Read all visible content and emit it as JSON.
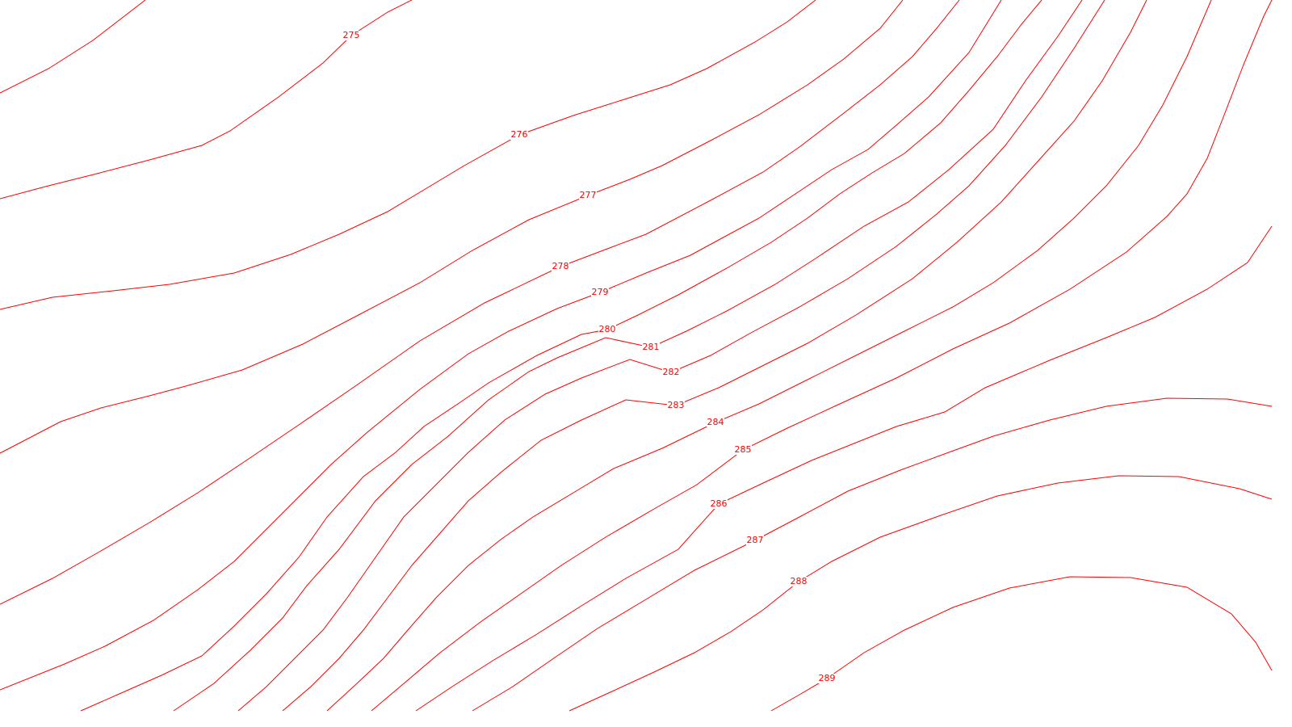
{
  "map": {
    "line_color": "#ff0000",
    "background": "#ffffff",
    "contours": [
      {
        "elevation": 275,
        "label": "275"
      },
      {
        "elevation": 276,
        "label": "276"
      },
      {
        "elevation": 277,
        "label": "277"
      },
      {
        "elevation": 278,
        "label": "278"
      },
      {
        "elevation": 279,
        "label": "279"
      },
      {
        "elevation": 280,
        "label": "280"
      },
      {
        "elevation": 281,
        "label": "281"
      },
      {
        "elevation": 282,
        "label": "282"
      },
      {
        "elevation": 283,
        "label": "283"
      },
      {
        "elevation": 284,
        "label": "284"
      },
      {
        "elevation": 285,
        "label": "285"
      },
      {
        "elevation": 286,
        "label": "286"
      },
      {
        "elevation": 287,
        "label": "287"
      },
      {
        "elevation": 288,
        "label": "288"
      },
      {
        "elevation": 289,
        "label": "289"
      }
    ]
  }
}
